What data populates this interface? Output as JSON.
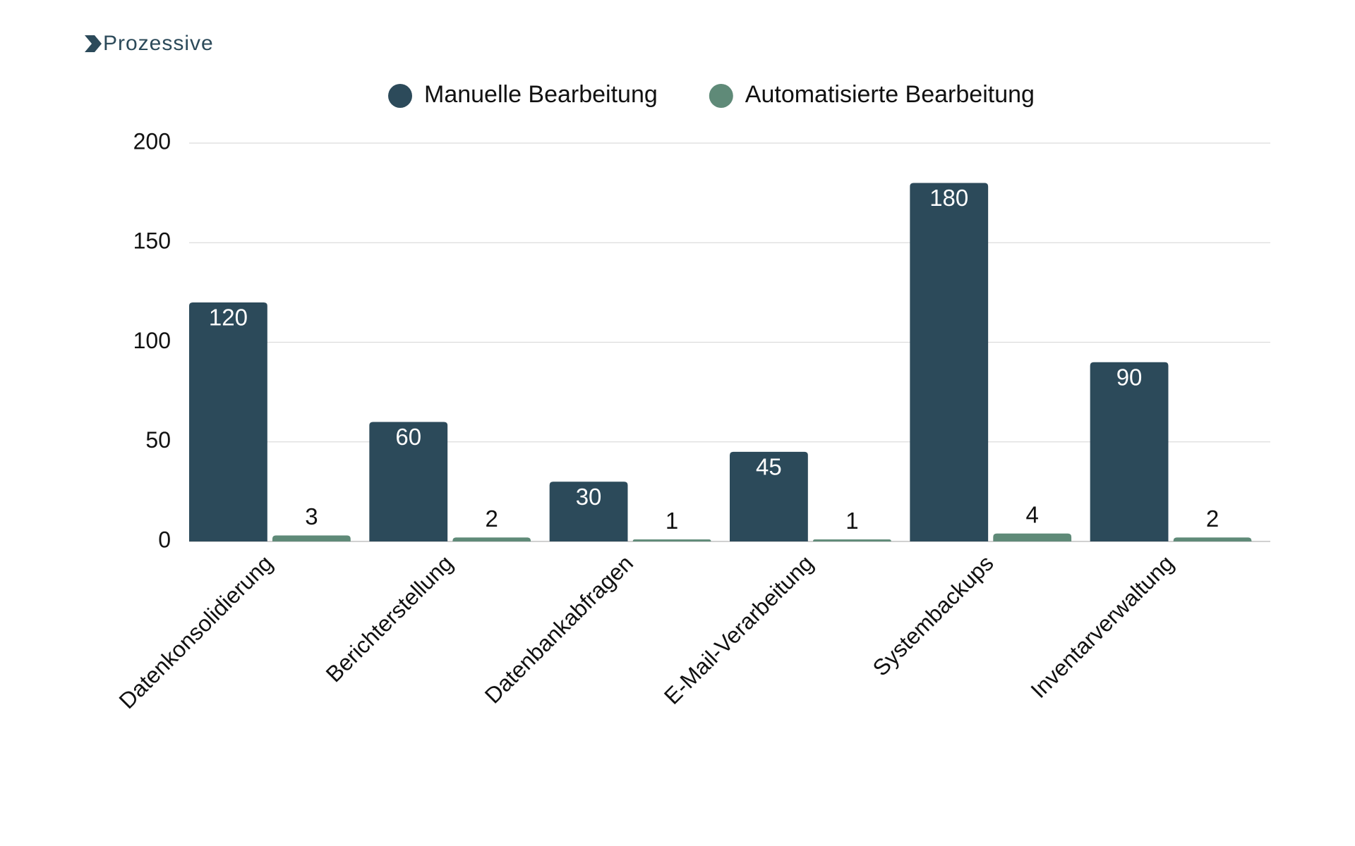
{
  "chart_data": {
    "type": "bar",
    "brand": "Prozessive",
    "categories": [
      "Datenkonsolidierung",
      "Berichterstellung",
      "Datenbankabfragen",
      "E-Mail-Verarbeitung",
      "Systembackups",
      "Inventarverwaltung"
    ],
    "series": [
      {
        "name": "Manuelle Bearbeitung",
        "color": "#2c4a5a",
        "values": [
          120,
          60,
          30,
          45,
          180,
          90
        ]
      },
      {
        "name": "Automatisierte Bearbeitung",
        "color": "#5f8a78",
        "values": [
          3,
          2,
          1,
          1,
          4,
          2
        ]
      }
    ],
    "ylim": [
      0,
      200
    ],
    "yticks": [
      0,
      50,
      100,
      150,
      200
    ],
    "grid": true,
    "legend": "top"
  }
}
